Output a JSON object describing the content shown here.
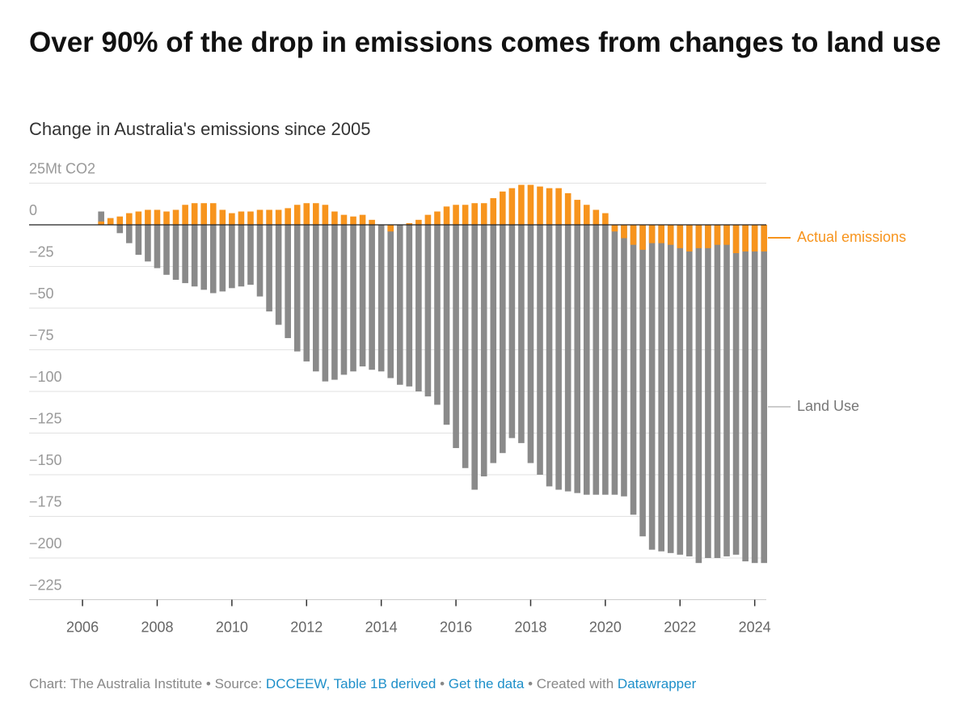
{
  "chart_data": {
    "type": "bar",
    "title": "Over 90% of the drop in emissions comes from changes to land use",
    "subtitle": "Change in Australia's emissions since 2005",
    "x": [
      2006.5,
      2006.75,
      2007,
      2007.25,
      2007.5,
      2007.75,
      2008,
      2008.25,
      2008.5,
      2008.75,
      2009,
      2009.25,
      2009.5,
      2009.75,
      2010,
      2010.25,
      2010.5,
      2010.75,
      2011,
      2011.25,
      2011.5,
      2011.75,
      2012,
      2012.25,
      2012.5,
      2012.75,
      2013,
      2013.25,
      2013.5,
      2013.75,
      2014,
      2014.25,
      2014.5,
      2014.75,
      2015,
      2015.25,
      2015.5,
      2015.75,
      2016,
      2016.25,
      2016.5,
      2016.75,
      2017,
      2017.25,
      2017.5,
      2017.75,
      2018,
      2018.25,
      2018.5,
      2018.75,
      2019,
      2019.25,
      2019.5,
      2019.75,
      2020,
      2020.25,
      2020.5,
      2020.75,
      2021,
      2021.25,
      2021.5,
      2021.75,
      2022,
      2022.25,
      2022.5,
      2022.75,
      2023,
      2023.25,
      2023.5,
      2023.75,
      2024,
      2024.25
    ],
    "series": [
      {
        "name": "Actual emissions",
        "color": "#f7941d",
        "values": [
          2,
          4,
          5,
          7,
          8,
          9,
          9,
          8,
          9,
          12,
          13,
          13,
          13,
          9,
          7,
          8,
          8,
          9,
          9,
          9,
          10,
          12,
          13,
          13,
          12,
          8,
          6,
          5,
          6,
          3,
          0,
          -4,
          0,
          1,
          3,
          6,
          8,
          11,
          12,
          12,
          13,
          13,
          16,
          20,
          22,
          24,
          24,
          23,
          22,
          22,
          19,
          15,
          12,
          9,
          7,
          -4,
          -8,
          -12,
          -15,
          -11,
          -11,
          -12,
          -14,
          -16,
          -14,
          -14,
          -12,
          -12,
          -17,
          -16,
          -16,
          -16
        ]
      },
      {
        "name": "Land Use",
        "color": "#8a8a8a",
        "values": [
          8,
          4,
          -5,
          -11,
          -18,
          -22,
          -26,
          -30,
          -33,
          -35,
          -37,
          -39,
          -41,
          -40,
          -38,
          -37,
          -36,
          -43,
          -52,
          -60,
          -68,
          -76,
          -82,
          -88,
          -94,
          -93,
          -90,
          -88,
          -85,
          -87,
          -88,
          -92,
          -96,
          -97,
          -100,
          -103,
          -108,
          -120,
          -134,
          -146,
          -159,
          -151,
          -143,
          -137,
          -128,
          -131,
          -143,
          -150,
          -157,
          -159,
          -160,
          -161,
          -162,
          -162,
          -162,
          -162,
          -163,
          -174,
          -187,
          -195,
          -196,
          -197,
          -198,
          -199,
          -203,
          -200,
          -200,
          -199,
          -198,
          -202,
          -203,
          -203
        ]
      }
    ],
    "xlim": [
      2004.57,
      2024.31
    ],
    "xticks": [
      2006,
      2008,
      2010,
      2012,
      2014,
      2016,
      2018,
      2020,
      2022,
      2024
    ],
    "ylim": [
      -225,
      25
    ],
    "yticks": [
      {
        "value": 25,
        "label": "25Mt CO2"
      },
      0,
      {
        "value": -25,
        "label": "−25"
      },
      {
        "value": -50,
        "label": "−50"
      },
      {
        "value": -75,
        "label": "−75"
      },
      {
        "value": -100,
        "label": "−100"
      },
      {
        "value": -125,
        "label": "−125"
      },
      {
        "value": -150,
        "label": "−150"
      },
      {
        "value": -175,
        "label": "−175"
      },
      {
        "value": -200,
        "label": "−200"
      },
      {
        "value": -225,
        "label": "−225"
      }
    ],
    "grid": true
  },
  "footer": {
    "credit": "Chart: The Australia Institute",
    "source_prefix": "• Source:",
    "source": "DCCEEW, Table 1B derived",
    "get_data": "Get the data",
    "created_prefix": "Created with",
    "created": "Datawrapper",
    "separator": "•"
  }
}
